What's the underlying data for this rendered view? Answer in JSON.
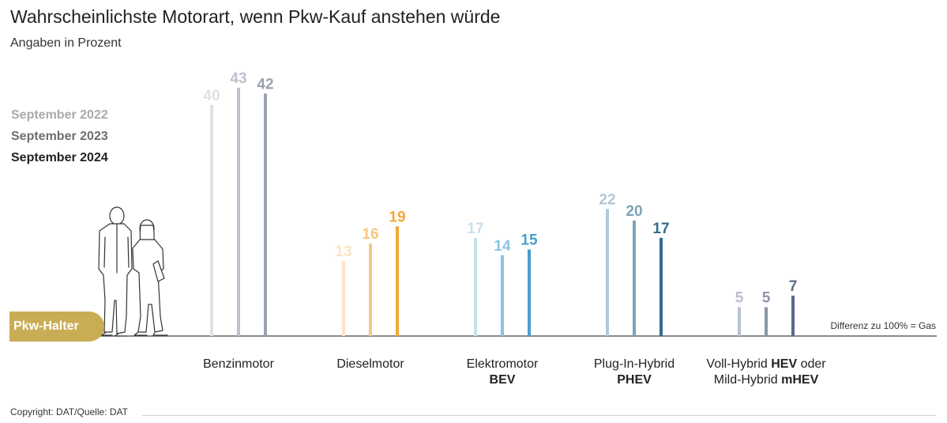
{
  "chart_data": {
    "type": "bar",
    "title": "Wahrscheinlichste Motorart, wenn Pkw-Kauf anstehen würde",
    "subtitle": "Angaben in Prozent",
    "categories": [
      {
        "line1": "Benzinmotor",
        "line2": ""
      },
      {
        "line1": "Dieselmotor",
        "line2": ""
      },
      {
        "line1": "Elektromotor",
        "line2": "BEV"
      },
      {
        "line1": "Plug-In-Hybrid",
        "line2": "PHEV"
      },
      {
        "line1_pre": "Voll-Hybrid ",
        "line1_bold": "HEV",
        "line1_post": " oder",
        "line2_pre": "Mild-Hybrid ",
        "line2_bold": "mHEV"
      }
    ],
    "series": [
      {
        "name": "September 2022",
        "values": [
          40,
          13,
          17,
          22,
          5
        ]
      },
      {
        "name": "September 2023",
        "values": [
          43,
          16,
          14,
          20,
          5
        ]
      },
      {
        "name": "September 2024",
        "values": [
          42,
          19,
          15,
          17,
          7
        ]
      }
    ],
    "ylim": [
      0,
      43
    ],
    "legend_position": "left",
    "legend_colors": [
      "#a9a9a9",
      "#6e6e6e",
      "#222222"
    ],
    "colors": [
      [
        "#dfe1e6",
        "#bcc2cd",
        "#9aa3b1"
      ],
      [
        "#fbe4c2",
        "#f8c77e",
        "#f2a83a"
      ],
      [
        "#c7e0ee",
        "#8cc3df",
        "#4a9fca"
      ],
      [
        "#b3c8d7",
        "#7ca2b7",
        "#2f6e8e"
      ],
      [
        "#b9c0cf",
        "#8a96aa",
        "#5a6b85"
      ]
    ]
  },
  "badge_label": "Pkw-Halter",
  "note": "Differenz zu 100% = Gas",
  "footer": "Copyright: DAT/Quelle: DAT"
}
